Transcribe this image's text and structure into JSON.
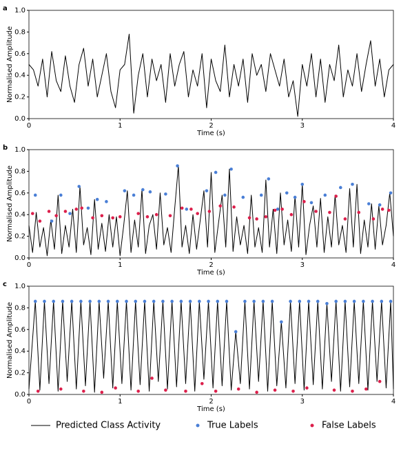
{
  "chart_data": [
    {
      "type": "line",
      "label": "a",
      "x_label": "Time (s)",
      "y_label": "Normalised Amplitude",
      "xlim": [
        0,
        4
      ],
      "xticks": [
        0,
        1,
        2,
        3,
        4
      ],
      "ylim": [
        0,
        1
      ],
      "yticks": [
        {
          "value": 0,
          "label": "0.0"
        },
        0.2,
        0.4,
        0.6,
        0.8,
        {
          "value": 1,
          "label": "1.0"
        }
      ],
      "series": [
        {
          "name": "Predicted Class Activity",
          "style": "line",
          "color": "#000000",
          "x": [
            0,
            0.05,
            0.1,
            0.15,
            0.2,
            0.25,
            0.3,
            0.35,
            0.4,
            0.45,
            0.5,
            0.55,
            0.6,
            0.65,
            0.7,
            0.75,
            0.8,
            0.85,
            0.9,
            0.95,
            1.0,
            1.05,
            1.1,
            1.15,
            1.2,
            1.25,
            1.3,
            1.35,
            1.4,
            1.45,
            1.5,
            1.55,
            1.6,
            1.65,
            1.7,
            1.75,
            1.8,
            1.85,
            1.9,
            1.95,
            2.0,
            2.05,
            2.1,
            2.15,
            2.2,
            2.25,
            2.3,
            2.35,
            2.4,
            2.45,
            2.5,
            2.55,
            2.6,
            2.65,
            2.7,
            2.75,
            2.8,
            2.85,
            2.9,
            2.95,
            3.0,
            3.05,
            3.1,
            3.15,
            3.2,
            3.25,
            3.3,
            3.35,
            3.4,
            3.45,
            3.5,
            3.55,
            3.6,
            3.65,
            3.7,
            3.75,
            3.8,
            3.85,
            3.9,
            3.95,
            4.0
          ],
          "values": [
            0.5,
            0.45,
            0.3,
            0.55,
            0.2,
            0.62,
            0.35,
            0.25,
            0.58,
            0.3,
            0.15,
            0.5,
            0.65,
            0.3,
            0.55,
            0.2,
            0.4,
            0.6,
            0.25,
            0.1,
            0.45,
            0.5,
            0.78,
            0.05,
            0.4,
            0.6,
            0.2,
            0.55,
            0.35,
            0.5,
            0.15,
            0.6,
            0.3,
            0.5,
            0.62,
            0.2,
            0.45,
            0.3,
            0.6,
            0.1,
            0.55,
            0.35,
            0.25,
            0.68,
            0.2,
            0.5,
            0.3,
            0.55,
            0.15,
            0.6,
            0.4,
            0.5,
            0.25,
            0.6,
            0.45,
            0.3,
            0.55,
            0.2,
            0.35,
            0.02,
            0.5,
            0.3,
            0.6,
            0.2,
            0.55,
            0.15,
            0.5,
            0.35,
            0.68,
            0.2,
            0.45,
            0.3,
            0.6,
            0.25,
            0.5,
            0.72,
            0.3,
            0.55,
            0.2,
            0.45,
            0.5
          ]
        }
      ]
    },
    {
      "type": "line",
      "label": "b",
      "x_label": "Time (s)",
      "y_label": "Normalised Amplitude",
      "xlim": [
        0,
        4
      ],
      "xticks": [
        0,
        1,
        2,
        3,
        4
      ],
      "ylim": [
        0,
        1
      ],
      "yticks": [
        {
          "value": 0,
          "label": "0.0"
        },
        0.2,
        0.4,
        0.6,
        0.8,
        {
          "value": 1,
          "label": "1.0"
        }
      ],
      "series": [
        {
          "name": "Predicted Class Activity",
          "style": "line",
          "color": "#000000",
          "x": [
            0,
            0.04,
            0.08,
            0.12,
            0.16,
            0.2,
            0.24,
            0.28,
            0.32,
            0.36,
            0.4,
            0.44,
            0.48,
            0.52,
            0.56,
            0.6,
            0.64,
            0.68,
            0.72,
            0.76,
            0.8,
            0.84,
            0.88,
            0.92,
            0.96,
            1.0,
            1.04,
            1.08,
            1.12,
            1.16,
            1.2,
            1.24,
            1.28,
            1.32,
            1.36,
            1.4,
            1.44,
            1.48,
            1.52,
            1.56,
            1.6,
            1.64,
            1.68,
            1.72,
            1.76,
            1.8,
            1.84,
            1.88,
            1.92,
            1.96,
            2.0,
            2.04,
            2.08,
            2.12,
            2.16,
            2.2,
            2.24,
            2.28,
            2.32,
            2.36,
            2.4,
            2.44,
            2.48,
            2.52,
            2.56,
            2.6,
            2.64,
            2.68,
            2.72,
            2.76,
            2.8,
            2.84,
            2.88,
            2.92,
            2.96,
            3.0,
            3.04,
            3.08,
            3.12,
            3.16,
            3.2,
            3.24,
            3.28,
            3.32,
            3.36,
            3.4,
            3.44,
            3.48,
            3.52,
            3.56,
            3.6,
            3.64,
            3.68,
            3.72,
            3.76,
            3.8,
            3.84,
            3.88,
            3.92,
            3.96,
            4.0
          ],
          "values": [
            0.3,
            0.05,
            0.42,
            0.1,
            0.28,
            0.02,
            0.35,
            0.08,
            0.58,
            0.04,
            0.3,
            0.1,
            0.45,
            0.05,
            0.66,
            0.12,
            0.28,
            0.03,
            0.54,
            0.08,
            0.32,
            0.06,
            0.4,
            0.1,
            0.38,
            0.02,
            0.3,
            0.62,
            0.05,
            0.35,
            0.1,
            0.63,
            0.04,
            0.3,
            0.4,
            0.08,
            0.6,
            0.12,
            0.28,
            0.05,
            0.46,
            0.85,
            0.1,
            0.3,
            0.04,
            0.4,
            0.08,
            0.35,
            0.62,
            0.1,
            0.79,
            0.05,
            0.32,
            0.58,
            0.1,
            0.82,
            0.06,
            0.38,
            0.12,
            0.3,
            0.04,
            0.58,
            0.1,
            0.28,
            0.05,
            0.72,
            0.1,
            0.45,
            0.04,
            0.6,
            0.12,
            0.35,
            0.06,
            0.57,
            0.1,
            0.68,
            0.03,
            0.3,
            0.48,
            0.1,
            0.55,
            0.05,
            0.38,
            0.1,
            0.58,
            0.12,
            0.3,
            0.05,
            0.64,
            0.1,
            0.68,
            0.04,
            0.35,
            0.1,
            0.5,
            0.08,
            0.48,
            0.12,
            0.3,
            0.6,
            0.2
          ]
        },
        {
          "name": "True Labels",
          "style": "dots",
          "color": "#4a7fd6",
          "x": [
            0.07,
            0.25,
            0.35,
            0.45,
            0.55,
            0.65,
            0.75,
            0.85,
            1.05,
            1.15,
            1.25,
            1.33,
            1.5,
            1.63,
            1.73,
            1.95,
            2.05,
            2.15,
            2.22,
            2.35,
            2.55,
            2.63,
            2.73,
            2.83,
            2.92,
            3.0,
            3.1,
            3.25,
            3.42,
            3.55,
            3.73,
            3.85,
            3.97
          ],
          "values": [
            0.58,
            0.34,
            0.58,
            0.41,
            0.66,
            0.46,
            0.54,
            0.52,
            0.62,
            0.58,
            0.63,
            0.61,
            0.59,
            0.85,
            0.45,
            0.62,
            0.79,
            0.58,
            0.82,
            0.56,
            0.58,
            0.73,
            0.45,
            0.6,
            0.56,
            0.68,
            0.51,
            0.58,
            0.65,
            0.68,
            0.5,
            0.49,
            0.6
          ]
        },
        {
          "name": "False Labels",
          "style": "dots",
          "color": "#dc1f4b",
          "x": [
            0.04,
            0.12,
            0.22,
            0.3,
            0.4,
            0.52,
            0.58,
            0.7,
            0.8,
            0.92,
            1.0,
            1.2,
            1.3,
            1.4,
            1.55,
            1.68,
            1.78,
            1.85,
            1.98,
            2.1,
            2.25,
            2.42,
            2.5,
            2.6,
            2.7,
            2.78,
            2.88,
            3.02,
            3.15,
            3.3,
            3.37,
            3.47,
            3.62,
            3.78,
            3.88,
            3.95
          ],
          "values": [
            0.41,
            0.34,
            0.43,
            0.39,
            0.43,
            0.45,
            0.46,
            0.37,
            0.39,
            0.37,
            0.38,
            0.41,
            0.38,
            0.4,
            0.39,
            0.46,
            0.45,
            0.41,
            0.43,
            0.48,
            0.47,
            0.37,
            0.36,
            0.38,
            0.44,
            0.45,
            0.4,
            0.52,
            0.43,
            0.42,
            0.57,
            0.36,
            0.42,
            0.36,
            0.45,
            0.44
          ]
        }
      ]
    },
    {
      "type": "line",
      "label": "c",
      "x_label": "Time (s)",
      "y_label": "Normalised Amplitude",
      "xlim": [
        0,
        4
      ],
      "xticks": [
        0,
        1,
        2,
        3,
        4
      ],
      "ylim": [
        0,
        1
      ],
      "yticks": [
        {
          "value": 0,
          "label": "0.0"
        },
        0.2,
        0.4,
        0.6,
        0.8,
        {
          "value": 1,
          "label": "1.0"
        }
      ],
      "series": [
        {
          "name": "Predicted Class Activity",
          "style": "line",
          "color": "#000000",
          "x": [
            0,
            0.07,
            0.12,
            0.17,
            0.22,
            0.27,
            0.32,
            0.37,
            0.42,
            0.47,
            0.52,
            0.57,
            0.62,
            0.67,
            0.72,
            0.77,
            0.82,
            0.87,
            0.92,
            0.97,
            1.02,
            1.07,
            1.12,
            1.17,
            1.22,
            1.27,
            1.32,
            1.37,
            1.42,
            1.47,
            1.52,
            1.57,
            1.62,
            1.67,
            1.72,
            1.77,
            1.82,
            1.87,
            1.92,
            1.97,
            2.02,
            2.07,
            2.12,
            2.17,
            2.22,
            2.27,
            2.32,
            2.37,
            2.42,
            2.47,
            2.52,
            2.57,
            2.62,
            2.67,
            2.72,
            2.77,
            2.82,
            2.87,
            2.92,
            2.97,
            3.02,
            3.07,
            3.12,
            3.17,
            3.22,
            3.27,
            3.32,
            3.37,
            3.42,
            3.47,
            3.52,
            3.57,
            3.62,
            3.67,
            3.72,
            3.77,
            3.82,
            3.87,
            3.92,
            3.97,
            4.0
          ],
          "values": [
            0.05,
            0.86,
            0.04,
            0.86,
            0.1,
            0.86,
            0.03,
            0.86,
            0.12,
            0.86,
            0.05,
            0.86,
            0.08,
            0.86,
            0.02,
            0.86,
            0.15,
            0.86,
            0.06,
            0.86,
            0.1,
            0.86,
            0.04,
            0.86,
            0.09,
            0.86,
            0.03,
            0.86,
            0.12,
            0.86,
            0.05,
            0.86,
            0.07,
            0.86,
            0.1,
            0.86,
            0.03,
            0.86,
            0.14,
            0.86,
            0.06,
            0.86,
            0.08,
            0.86,
            0.04,
            0.58,
            0.1,
            0.86,
            0.05,
            0.86,
            0.12,
            0.86,
            0.03,
            0.86,
            0.08,
            0.67,
            0.06,
            0.86,
            0.1,
            0.86,
            0.04,
            0.86,
            0.09,
            0.86,
            0.05,
            0.84,
            0.12,
            0.86,
            0.03,
            0.86,
            0.07,
            0.86,
            0.1,
            0.86,
            0.04,
            0.86,
            0.12,
            0.86,
            0.06,
            0.86,
            0.05
          ]
        },
        {
          "name": "True Labels",
          "style": "dots",
          "color": "#4a7fd6",
          "x": [
            0.07,
            0.17,
            0.27,
            0.37,
            0.47,
            0.57,
            0.67,
            0.77,
            0.87,
            0.97,
            1.07,
            1.17,
            1.27,
            1.37,
            1.47,
            1.57,
            1.67,
            1.77,
            1.87,
            1.97,
            2.07,
            2.17,
            2.27,
            2.37,
            2.47,
            2.57,
            2.67,
            2.77,
            2.87,
            2.97,
            3.07,
            3.17,
            3.27,
            3.37,
            3.47,
            3.57,
            3.67,
            3.77,
            3.87,
            3.97
          ],
          "values": [
            0.86,
            0.86,
            0.86,
            0.86,
            0.86,
            0.86,
            0.86,
            0.86,
            0.86,
            0.86,
            0.86,
            0.86,
            0.86,
            0.86,
            0.86,
            0.86,
            0.86,
            0.86,
            0.86,
            0.86,
            0.86,
            0.86,
            0.58,
            0.86,
            0.86,
            0.86,
            0.86,
            0.67,
            0.86,
            0.86,
            0.86,
            0.86,
            0.84,
            0.86,
            0.86,
            0.86,
            0.86,
            0.86,
            0.86,
            0.86
          ]
        },
        {
          "name": "False Labels",
          "style": "dots",
          "color": "#dc1f4b",
          "x": [
            0.1,
            0.35,
            0.6,
            0.8,
            0.95,
            1.2,
            1.35,
            1.5,
            1.72,
            1.9,
            2.05,
            2.3,
            2.5,
            2.7,
            2.9,
            3.05,
            3.35,
            3.55,
            3.7,
            3.85
          ],
          "values": [
            0.03,
            0.05,
            0.03,
            0.02,
            0.06,
            0.03,
            0.15,
            0.04,
            0.03,
            0.1,
            0.03,
            0.05,
            0.02,
            0.04,
            0.03,
            0.06,
            0.04,
            0.03,
            0.05,
            0.12
          ]
        }
      ]
    }
  ]
}
